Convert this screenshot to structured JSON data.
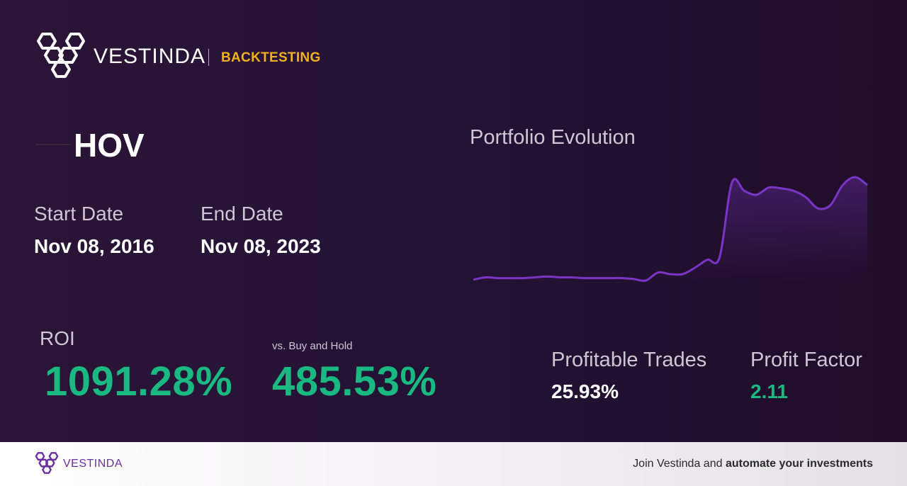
{
  "header": {
    "brand": "VESTINDA",
    "section": "BACKTESTING",
    "logo_icon": "vestinda-hexagon-logo"
  },
  "ticker": "HOV",
  "dates": {
    "start_label": "Start Date",
    "start_value": "Nov 08, 2016",
    "end_label": "End Date",
    "end_value": "Nov 08, 2023"
  },
  "metrics": {
    "roi_label": "ROI",
    "roi_value": "1091.28%",
    "bh_label": "vs. Buy and Hold",
    "bh_value": "485.53%",
    "profitable_label": "Profitable Trades",
    "profitable_value": "25.93%",
    "pf_label": "Profit Factor",
    "pf_value": "2.11"
  },
  "chart_data": {
    "type": "area",
    "title": "Portfolio Evolution",
    "xlabel": "",
    "ylabel": "",
    "grid": false,
    "line_color": "#7b35c6",
    "series": [
      {
        "values": [
          2,
          5,
          4,
          4,
          4,
          5,
          6,
          5,
          5,
          4,
          4,
          4,
          4,
          3,
          1,
          11,
          9,
          9,
          17,
          27,
          30,
          123,
          113,
          108,
          117,
          116,
          113,
          105,
          91,
          95,
          120,
          130,
          120
        ]
      }
    ]
  },
  "footer": {
    "brand": "VESTINDA",
    "cta_prefix": "Join Vestinda and ",
    "cta_bold": "automate your investments"
  },
  "colors": {
    "accent_green": "#19b981",
    "accent_gold": "#f2b01e",
    "brand_purple": "#6a2fa0"
  }
}
